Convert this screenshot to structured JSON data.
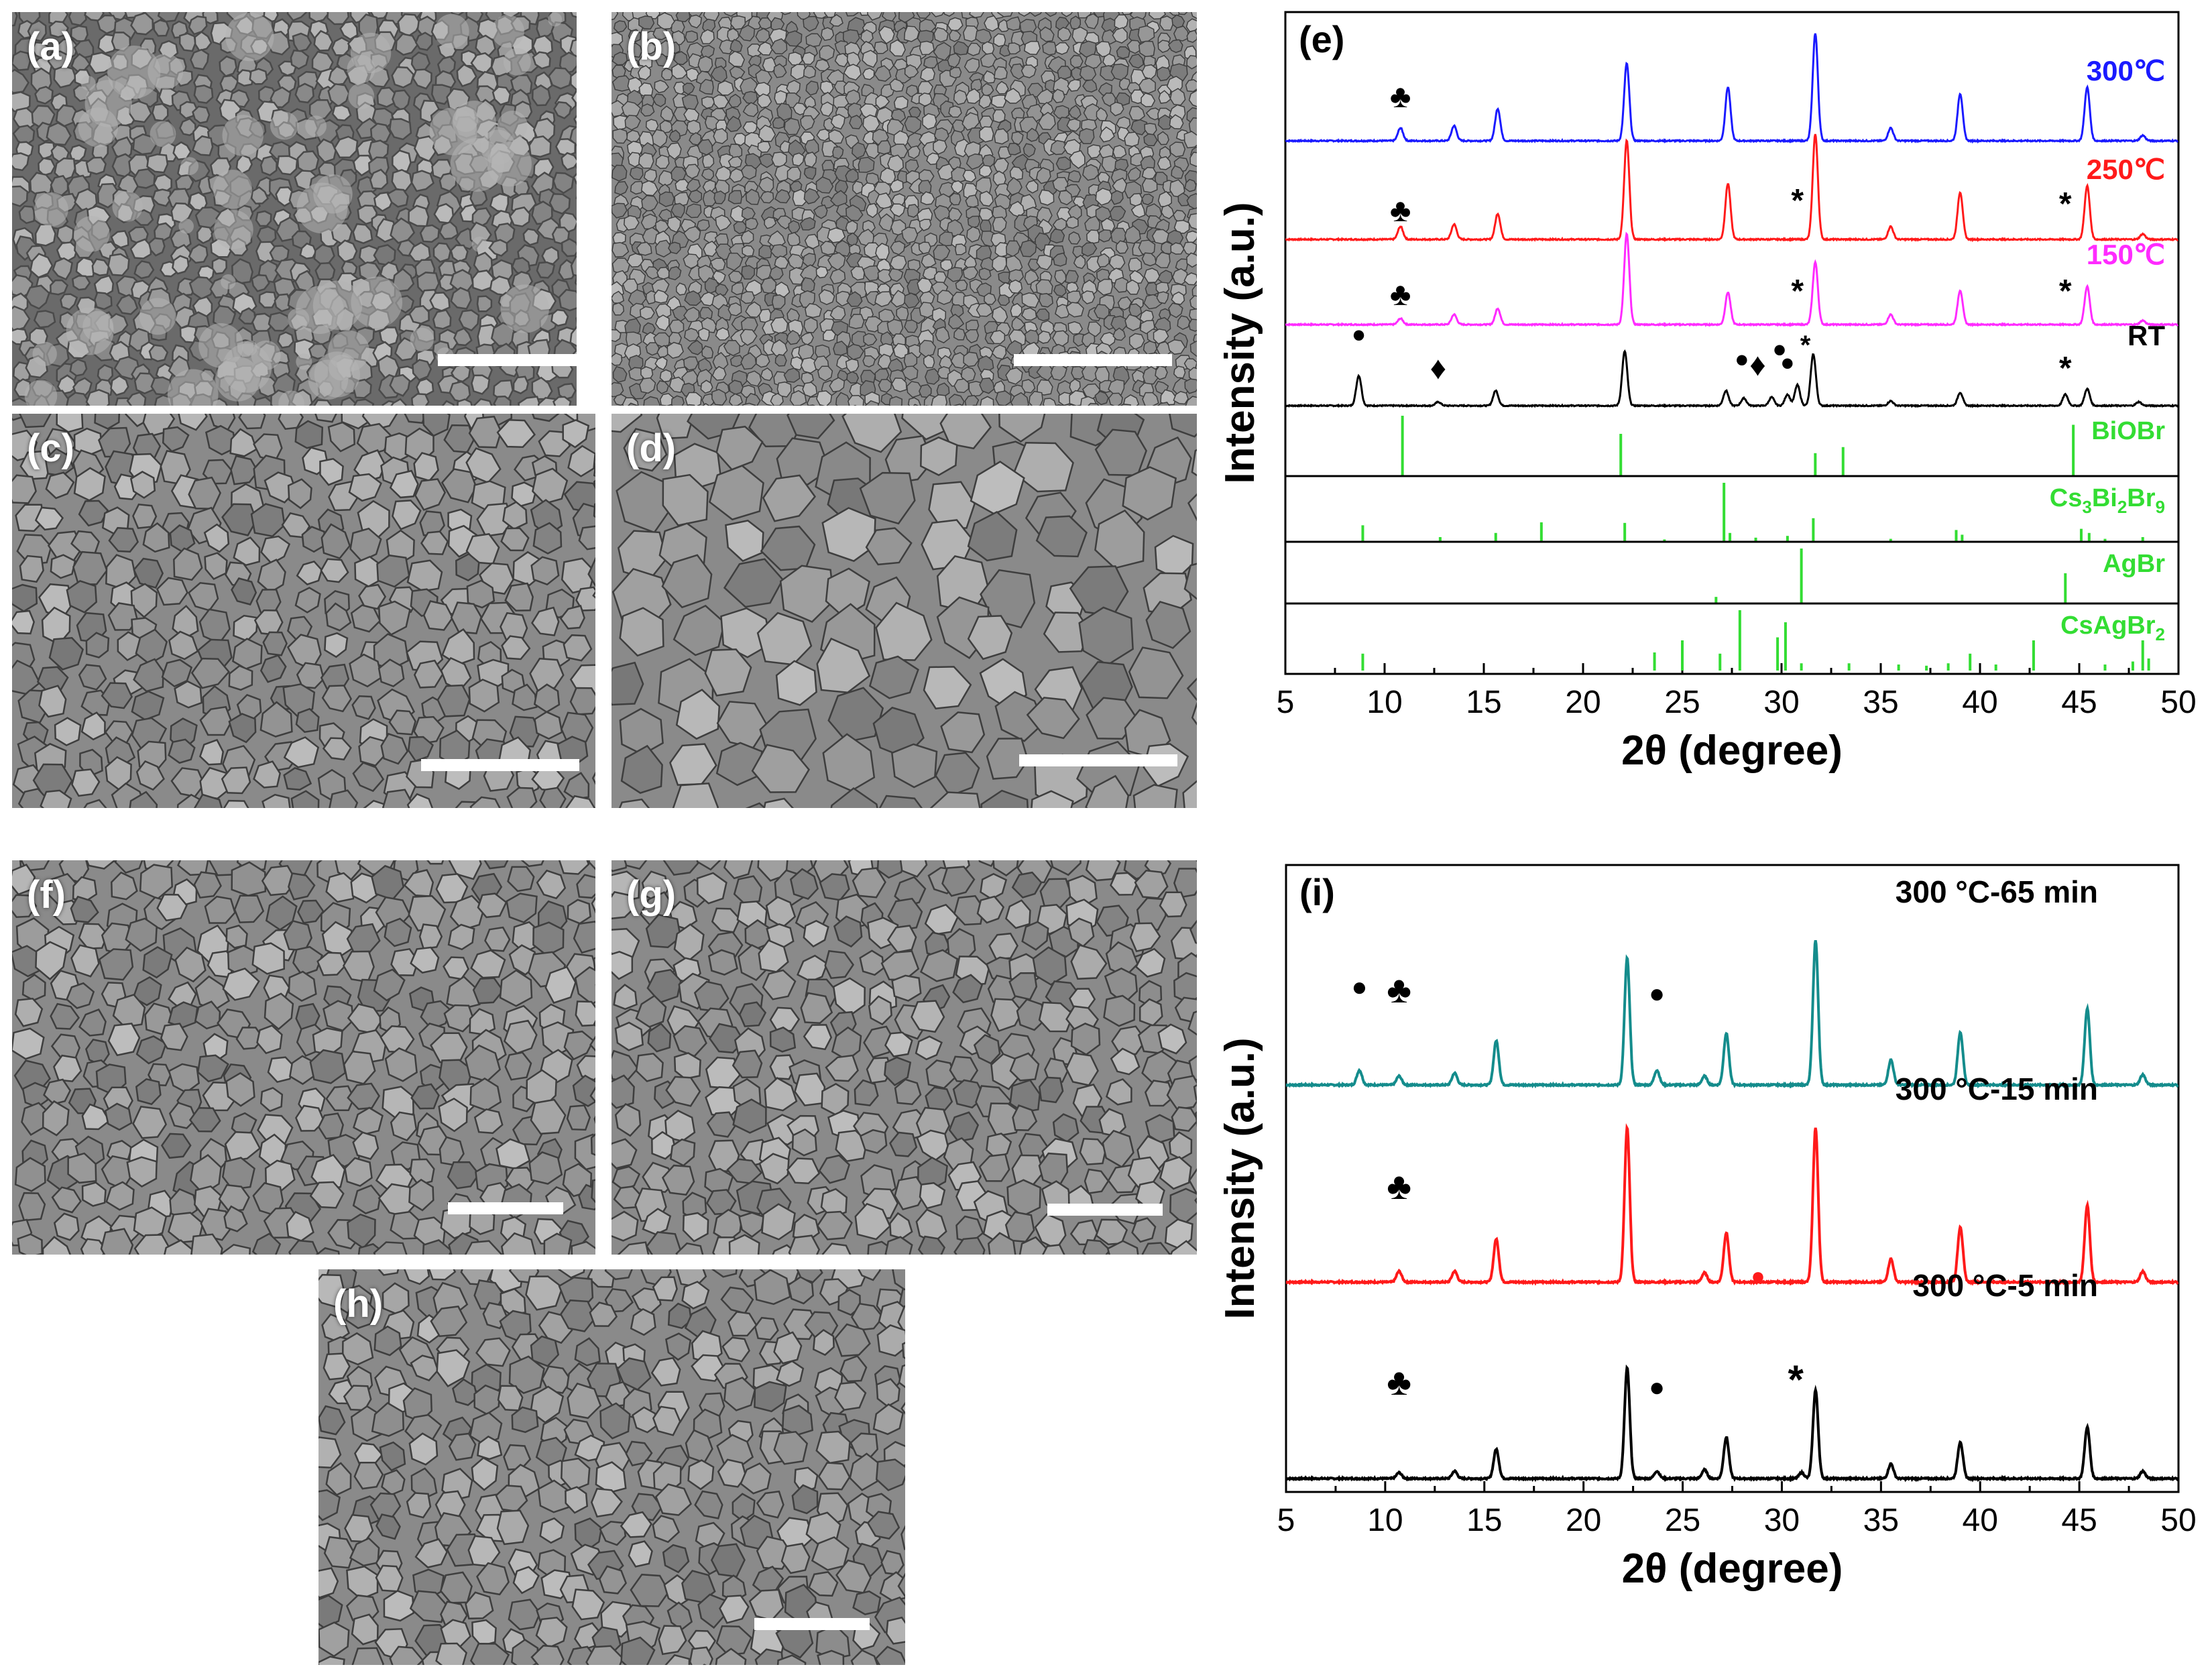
{
  "colors": {
    "c300": "#1a1aff",
    "c250": "#ff1a1a",
    "c150": "#ff2bff",
    "cRT": "#000000",
    "ref": "#33dd33",
    "teal": "#148c8c",
    "red": "#ff1a1a",
    "black": "#000000"
  },
  "sem_panels": [
    {
      "label": "(a)",
      "texture": "rough"
    },
    {
      "label": "(b)",
      "texture": "fine"
    },
    {
      "label": "(c)",
      "texture": "grains"
    },
    {
      "label": "(d)",
      "texture": "large-grains"
    },
    {
      "label": "(f)",
      "texture": "grains"
    },
    {
      "label": "(g)",
      "texture": "grains"
    },
    {
      "label": "(h)",
      "texture": "grains"
    }
  ],
  "chart_data": [
    {
      "type": "line",
      "panel_label": "(e)",
      "xlabel": "2θ (degree)",
      "ylabel": "Intensity (a.u.)",
      "xlim": [
        5,
        50
      ],
      "xticks": [
        "5",
        "10",
        "15",
        "20",
        "25",
        "30",
        "35",
        "40",
        "45",
        "50"
      ],
      "series": [
        {
          "name": "300℃",
          "color_key": "c300",
          "peaks": [
            [
              10.8,
              0.12
            ],
            [
              13.5,
              0.14
            ],
            [
              15.7,
              0.3
            ],
            [
              22.2,
              0.72
            ],
            [
              27.3,
              0.5
            ],
            [
              31.7,
              1.0
            ],
            [
              35.5,
              0.12
            ],
            [
              39.0,
              0.44
            ],
            [
              45.4,
              0.5
            ],
            [
              48.2,
              0.05
            ]
          ]
        },
        {
          "name": "250℃",
          "color_key": "c250",
          "peaks": [
            [
              10.8,
              0.12
            ],
            [
              13.5,
              0.14
            ],
            [
              15.7,
              0.24
            ],
            [
              22.2,
              0.92
            ],
            [
              27.3,
              0.52
            ],
            [
              31.7,
              0.98
            ],
            [
              35.5,
              0.12
            ],
            [
              39.0,
              0.44
            ],
            [
              45.4,
              0.5
            ],
            [
              48.2,
              0.05
            ]
          ]
        },
        {
          "name": "150℃",
          "color_key": "c150",
          "peaks": [
            [
              10.8,
              0.06
            ],
            [
              13.5,
              0.1
            ],
            [
              15.7,
              0.16
            ],
            [
              22.2,
              0.9
            ],
            [
              27.3,
              0.32
            ],
            [
              31.7,
              0.62
            ],
            [
              35.5,
              0.1
            ],
            [
              39.0,
              0.34
            ],
            [
              45.4,
              0.38
            ],
            [
              48.2,
              0.04
            ]
          ]
        },
        {
          "name": "RT",
          "color_key": "cRT",
          "peaks": [
            [
              8.7,
              0.32
            ],
            [
              12.7,
              0.04
            ],
            [
              15.6,
              0.16
            ],
            [
              22.1,
              0.58
            ],
            [
              27.2,
              0.16
            ],
            [
              28.1,
              0.08
            ],
            [
              29.5,
              0.09
            ],
            [
              30.3,
              0.12
            ],
            [
              30.8,
              0.22
            ],
            [
              31.6,
              0.55
            ],
            [
              35.5,
              0.05
            ],
            [
              39.0,
              0.14
            ],
            [
              44.3,
              0.12
            ],
            [
              45.4,
              0.18
            ],
            [
              48.0,
              0.04
            ]
          ]
        }
      ],
      "references": [
        {
          "name": "BiOBr",
          "sticks": [
            [
              10.9,
              1.0
            ],
            [
              21.9,
              0.7
            ],
            [
              31.7,
              0.38
            ],
            [
              33.1,
              0.48
            ],
            [
              44.7,
              0.85
            ]
          ]
        },
        {
          "name": "Cs3Bi2Br9",
          "name_main": "Cs",
          "sub1": "3",
          "mid1": "Bi",
          "sub2": "2",
          "mid2": "Br",
          "sub3": "9",
          "sticks": [
            [
              8.9,
              0.28
            ],
            [
              12.8,
              0.08
            ],
            [
              15.6,
              0.15
            ],
            [
              17.9,
              0.33
            ],
            [
              22.1,
              0.32
            ],
            [
              24.1,
              0.04
            ],
            [
              27.1,
              1.0
            ],
            [
              27.4,
              0.15
            ],
            [
              28.7,
              0.07
            ],
            [
              30.3,
              0.1
            ],
            [
              31.6,
              0.4
            ],
            [
              35.5,
              0.05
            ],
            [
              38.8,
              0.2
            ],
            [
              39.1,
              0.12
            ],
            [
              45.1,
              0.22
            ],
            [
              45.5,
              0.15
            ],
            [
              46.3,
              0.05
            ],
            [
              48.2,
              0.08
            ]
          ]
        },
        {
          "name": "AgBr",
          "sticks": [
            [
              26.7,
              0.12
            ],
            [
              31.0,
              1.0
            ],
            [
              44.3,
              0.55
            ]
          ]
        },
        {
          "name": "CsAgBr2",
          "name_main": "CsAgBr",
          "sub1": "2",
          "sticks": [
            [
              8.9,
              0.28
            ],
            [
              23.6,
              0.3
            ],
            [
              25.0,
              0.5
            ],
            [
              26.9,
              0.28
            ],
            [
              27.9,
              1.0
            ],
            [
              29.8,
              0.55
            ],
            [
              30.2,
              0.8
            ],
            [
              31.0,
              0.12
            ],
            [
              33.4,
              0.12
            ],
            [
              35.9,
              0.1
            ],
            [
              37.3,
              0.08
            ],
            [
              38.4,
              0.12
            ],
            [
              39.5,
              0.28
            ],
            [
              40.8,
              0.1
            ],
            [
              42.7,
              0.5
            ],
            [
              46.3,
              0.1
            ],
            [
              47.7,
              0.15
            ],
            [
              48.2,
              0.5
            ],
            [
              48.5,
              0.2
            ]
          ]
        }
      ],
      "annotations": [
        "♣",
        "♣",
        "♣",
        "*",
        "*",
        "*",
        "*",
        "*",
        "•",
        "♦",
        "•",
        "♦",
        "•",
        "•"
      ]
    },
    {
      "type": "line",
      "panel_label": "(i)",
      "xlabel": "2θ (degree)",
      "ylabel": "Intensity (a.u.)",
      "xlim": [
        5,
        50
      ],
      "xticks": [
        "5",
        "10",
        "15",
        "20",
        "25",
        "30",
        "35",
        "40",
        "45",
        "50"
      ],
      "series": [
        {
          "name": "300 °C-65 min",
          "color_key": "teal",
          "peaks": [
            [
              8.7,
              0.1
            ],
            [
              10.7,
              0.06
            ],
            [
              13.5,
              0.08
            ],
            [
              15.6,
              0.3
            ],
            [
              22.2,
              0.86
            ],
            [
              23.7,
              0.1
            ],
            [
              26.1,
              0.06
            ],
            [
              27.2,
              0.35
            ],
            [
              31.7,
              0.98
            ],
            [
              35.5,
              0.17
            ],
            [
              39.0,
              0.36
            ],
            [
              45.4,
              0.52
            ],
            [
              48.2,
              0.07
            ]
          ]
        },
        {
          "name": "300 °C-15 min",
          "color_key": "red",
          "peaks": [
            [
              10.7,
              0.07
            ],
            [
              13.5,
              0.07
            ],
            [
              15.6,
              0.28
            ],
            [
              22.2,
              1.0
            ],
            [
              26.1,
              0.06
            ],
            [
              27.2,
              0.32
            ],
            [
              31.7,
              1.0
            ],
            [
              35.5,
              0.15
            ],
            [
              39.0,
              0.36
            ],
            [
              45.4,
              0.5
            ],
            [
              48.2,
              0.07
            ]
          ]
        },
        {
          "name": "300 °C-5 min",
          "color_key": "black",
          "peaks": [
            [
              10.7,
              0.04
            ],
            [
              13.5,
              0.05
            ],
            [
              15.6,
              0.2
            ],
            [
              22.2,
              0.75
            ],
            [
              23.7,
              0.05
            ],
            [
              26.1,
              0.06
            ],
            [
              27.2,
              0.28
            ],
            [
              31.0,
              0.04
            ],
            [
              31.7,
              0.6
            ],
            [
              35.5,
              0.1
            ],
            [
              39.0,
              0.25
            ],
            [
              45.4,
              0.35
            ],
            [
              48.2,
              0.05
            ]
          ]
        }
      ],
      "annotations": [
        "●",
        "♣",
        "●",
        "♣",
        "●",
        "♣",
        "●",
        "*"
      ]
    }
  ]
}
